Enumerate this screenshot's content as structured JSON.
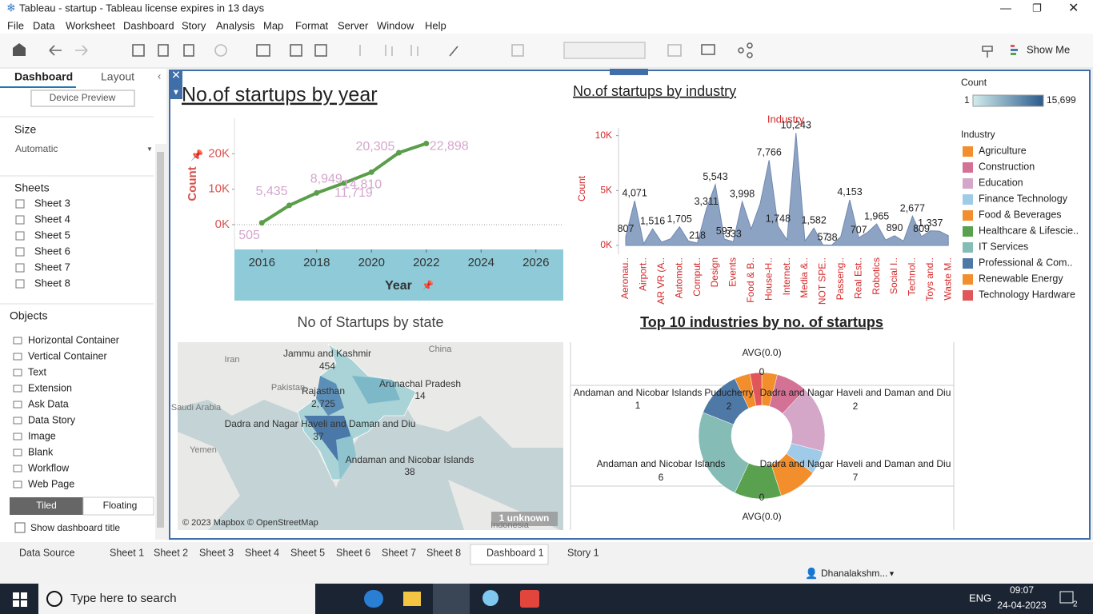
{
  "window": {
    "title": "Tableau - startup - Tableau license expires in 13 days"
  },
  "menu": [
    "File",
    "Data",
    "Worksheet",
    "Dashboard",
    "Story",
    "Analysis",
    "Map",
    "Format",
    "Server",
    "Window",
    "Help"
  ],
  "toolbar": {
    "show_me": "Show Me"
  },
  "side_panel": {
    "tabs": [
      "Dashboard",
      "Layout"
    ],
    "device_preview": "Device Preview",
    "size_heading": "Size",
    "size_value": "Automatic",
    "sheets_heading": "Sheets",
    "sheets": [
      "Sheet 3",
      "Sheet 4",
      "Sheet 5",
      "Sheet 6",
      "Sheet 7",
      "Sheet 8"
    ],
    "objects_heading": "Objects",
    "objects": [
      "Horizontal Container",
      "Vertical Container",
      "Text",
      "Extension",
      "Ask Data",
      "Data Story",
      "Image",
      "Blank",
      "Workflow",
      "Web Page"
    ],
    "layout_modes": [
      "Tiled",
      "Floating"
    ],
    "show_title": "Show dashboard title"
  },
  "chart_data": [
    {
      "type": "line",
      "title": "No.of startups by year",
      "x_label": "Year",
      "y_label": "Count",
      "color": "#5a9e4a",
      "label_color": "#d4a6cc",
      "x": [
        2016,
        2017,
        2018,
        2019,
        2020,
        2021,
        2022
      ],
      "values": [
        505,
        5435,
        8949,
        11719,
        14810,
        20305,
        22898
      ],
      "value_labels": [
        "505",
        "5,435",
        "8,949",
        "11,719",
        "14,810",
        "20,305",
        "22,898"
      ],
      "xlim": [
        2015,
        2027
      ],
      "xticks": [
        2016,
        2018,
        2020,
        2022,
        2024,
        2026
      ],
      "ylim": [
        -7000,
        30000
      ],
      "yticks": [
        {
          "value": 0,
          "label": "0K"
        },
        {
          "value": 10000,
          "label": "10K"
        },
        {
          "value": 20000,
          "label": "20K"
        }
      ]
    },
    {
      "type": "area",
      "title": "No.of startups by industry",
      "x_label": "Industry",
      "y_label": "Count",
      "color": "#8da3c3",
      "categories": [
        "Aeronau..",
        null,
        "Airport..",
        null,
        "AR VR (A..",
        null,
        "Automot..",
        null,
        "Comput..",
        null,
        "Design",
        null,
        "Events",
        null,
        "Food & B..",
        null,
        "House-H..",
        null,
        "Internet..",
        null,
        "Media &..",
        null,
        "NOT SPE..",
        null,
        "Passeng..",
        null,
        "Real Est..",
        null,
        "Robotics",
        null,
        "Social I..",
        null,
        "Technol..",
        null,
        "Toys and..",
        null,
        "Waste M.."
      ],
      "values": [
        807,
        4071,
        150,
        1516,
        300,
        600,
        1705,
        400,
        218,
        3311,
        5543,
        597,
        333,
        3998,
        1500,
        3800,
        7766,
        1748,
        500,
        10243,
        400,
        1582,
        57,
        38,
        800,
        4153,
        707,
        1200,
        1965,
        500,
        890,
        400,
        2677,
        809,
        1337,
        1300,
        900
      ],
      "value_labels": [
        "807",
        "4,071",
        null,
        "1,516",
        null,
        null,
        "1,705",
        null,
        "218",
        "3,311",
        "5,543",
        "597",
        "333",
        "3,998",
        null,
        null,
        "7,766",
        "1,748",
        null,
        "10,243",
        null,
        "1,582",
        "57",
        "38",
        null,
        "4,153",
        "707",
        null,
        "1,965",
        null,
        "890",
        null,
        "2,677",
        "809",
        "1,337",
        null,
        null
      ],
      "ylim": [
        -800,
        10700
      ],
      "yticks": [
        {
          "value": 0,
          "label": "0K"
        },
        {
          "value": 5000,
          "label": "5K"
        },
        {
          "value": 10000,
          "label": "10K"
        }
      ],
      "color_legend": {
        "title": "Count",
        "min": 1,
        "max": {
          "value": 15699,
          "label": "15,699"
        },
        "colors": [
          "#d2ecec",
          "#2b5b8c"
        ]
      },
      "legend": {
        "title": "Industry",
        "items": [
          {
            "name": "Agriculture",
            "color": "#f28e2b"
          },
          {
            "name": "Construction",
            "color": "#d37295"
          },
          {
            "name": "Education",
            "color": "#d4a6c8"
          },
          {
            "name": "Finance Technology",
            "color": "#a0cbe8"
          },
          {
            "name": "Food & Beverages",
            "color": "#f28e2b"
          },
          {
            "name": "Healthcare & Lifescie..",
            "color": "#59a14f"
          },
          {
            "name": "IT Services",
            "color": "#86bcb6"
          },
          {
            "name": "Professional & Com..",
            "color": "#4e79a7"
          },
          {
            "name": "Renewable Energy",
            "color": "#f28e2b"
          },
          {
            "name": "Technology Hardware",
            "color": "#e15759"
          }
        ]
      }
    },
    {
      "type": "pie",
      "title": "Top 10 industries by no. of startups",
      "values": [
        4,
        8,
        17,
        6,
        10,
        12,
        24,
        12,
        4,
        3
      ],
      "colors": [
        "#f28e2b",
        "#d37295",
        "#d4a6c8",
        "#a0cbe8",
        "#f28e2b",
        "#59a14f",
        "#86bcb6",
        "#4e79a7",
        "#f28e2b",
        "#e15759"
      ],
      "annotations": [
        "AVG(0.0)",
        "0",
        "Andaman and Nicobar Islands",
        "1",
        "Puducherry",
        "2",
        "Dadra and Nagar Haveli and Daman and Diu",
        "2",
        "Andaman and Nicobar Islands",
        "6",
        "Dadra and Nagar Haveli and Daman and Diu",
        "7",
        "0",
        "AVG(0.0)"
      ]
    }
  ],
  "map": {
    "title": "No of Startups by state",
    "countries": [
      "Iran",
      "China",
      "Pakistan",
      "Saudi Arabia",
      "Yemen",
      "Indonesia"
    ],
    "labels": [
      {
        "name": "Jammu and Kashmir",
        "value": "454"
      },
      {
        "name": "Rajasthan",
        "value": "2,725"
      },
      {
        "name": "Arunachal Pradesh",
        "value": "14"
      },
      {
        "name": "Dadra and Nagar Haveli and Daman and Diu",
        "value": "37"
      },
      {
        "name": "Andaman and Nicobar Islands",
        "value": "38"
      }
    ],
    "attribution": "© 2023 Mapbox © OpenStreetMap",
    "unknown": "1 unknown"
  },
  "tabs": [
    "Data Source",
    "Sheet 1",
    "Sheet 2",
    "Sheet 3",
    "Sheet 4",
    "Sheet 5",
    "Sheet 6",
    "Sheet 7",
    "Sheet 8",
    "Dashboard 1",
    "Story 1"
  ],
  "status": {
    "user": "Dhanalakshm..."
  },
  "taskbar": {
    "search": "Type here to search",
    "language": "ENG",
    "time": "09:07",
    "date": "24-04-2023",
    "notifications": 2
  }
}
